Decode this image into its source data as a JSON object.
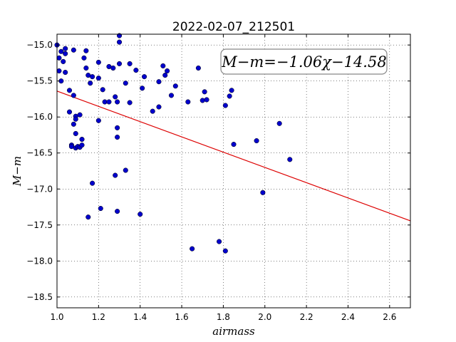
{
  "chart_data": {
    "type": "scatter",
    "title": "2022-02-07_212501",
    "xlabel": "airmass",
    "ylabel": "M−m",
    "xlim": [
      1.0,
      2.7
    ],
    "ylim": [
      -18.65,
      -14.85
    ],
    "y_inverted": false,
    "grid": true,
    "x_ticks": [
      1.0,
      1.2,
      1.4,
      1.6,
      1.8,
      2.0,
      2.2,
      2.4,
      2.6
    ],
    "x_tick_labels": [
      "1.0",
      "1.2",
      "1.4",
      "1.6",
      "1.8",
      "2.0",
      "2.2",
      "2.4",
      "2.6"
    ],
    "y_ticks": [
      -15.0,
      -15.5,
      -16.0,
      -16.5,
      -17.0,
      -17.5,
      -18.0,
      -18.5
    ],
    "y_tick_labels": [
      "−15.0",
      "−15.5",
      "−16.0",
      "−16.5",
      "−17.0",
      "−17.5",
      "−18.0",
      "−18.5"
    ],
    "annotation": "M−m=−1.06χ−14.58",
    "point_color": "#0000cc",
    "fit_color": "#dd0000",
    "fit_line": {
      "slope": -1.06,
      "intercept": -14.58,
      "x_range": [
        1.0,
        2.7
      ]
    },
    "points": [
      {
        "x": 1.0,
        "y": -15.0
      },
      {
        "x": 1.01,
        "y": -15.18
      },
      {
        "x": 1.01,
        "y": -15.36
      },
      {
        "x": 1.02,
        "y": -15.09
      },
      {
        "x": 1.02,
        "y": -15.5
      },
      {
        "x": 1.03,
        "y": -15.23
      },
      {
        "x": 1.04,
        "y": -15.05
      },
      {
        "x": 1.04,
        "y": -15.12
      },
      {
        "x": 1.04,
        "y": -15.38
      },
      {
        "x": 1.06,
        "y": -15.63
      },
      {
        "x": 1.06,
        "y": -15.93
      },
      {
        "x": 1.07,
        "y": -16.39
      },
      {
        "x": 1.07,
        "y": -16.41
      },
      {
        "x": 1.08,
        "y": -15.07
      },
      {
        "x": 1.08,
        "y": -15.7
      },
      {
        "x": 1.08,
        "y": -16.1
      },
      {
        "x": 1.09,
        "y": -15.99
      },
      {
        "x": 1.09,
        "y": -16.03
      },
      {
        "x": 1.09,
        "y": -16.23
      },
      {
        "x": 1.09,
        "y": -16.43
      },
      {
        "x": 1.1,
        "y": -16.41
      },
      {
        "x": 1.11,
        "y": -15.97
      },
      {
        "x": 1.11,
        "y": -16.42
      },
      {
        "x": 1.12,
        "y": -16.39
      },
      {
        "x": 1.12,
        "y": -16.31
      },
      {
        "x": 1.13,
        "y": -15.18
      },
      {
        "x": 1.14,
        "y": -15.08
      },
      {
        "x": 1.14,
        "y": -15.32
      },
      {
        "x": 1.15,
        "y": -15.42
      },
      {
        "x": 1.15,
        "y": -17.39
      },
      {
        "x": 1.16,
        "y": -15.53
      },
      {
        "x": 1.17,
        "y": -15.44
      },
      {
        "x": 1.17,
        "y": -16.92
      },
      {
        "x": 1.2,
        "y": -15.24
      },
      {
        "x": 1.2,
        "y": -15.46
      },
      {
        "x": 1.2,
        "y": -16.05
      },
      {
        "x": 1.21,
        "y": -17.27
      },
      {
        "x": 1.22,
        "y": -15.62
      },
      {
        "x": 1.23,
        "y": -15.79
      },
      {
        "x": 1.25,
        "y": -15.3
      },
      {
        "x": 1.25,
        "y": -15.79
      },
      {
        "x": 1.27,
        "y": -15.32
      },
      {
        "x": 1.28,
        "y": -15.72
      },
      {
        "x": 1.28,
        "y": -16.81
      },
      {
        "x": 1.29,
        "y": -15.79
      },
      {
        "x": 1.29,
        "y": -16.15
      },
      {
        "x": 1.29,
        "y": -16.28
      },
      {
        "x": 1.29,
        "y": -17.31
      },
      {
        "x": 1.3,
        "y": -14.87
      },
      {
        "x": 1.3,
        "y": -14.96
      },
      {
        "x": 1.3,
        "y": -15.26
      },
      {
        "x": 1.33,
        "y": -15.53
      },
      {
        "x": 1.33,
        "y": -16.74
      },
      {
        "x": 1.35,
        "y": -15.26
      },
      {
        "x": 1.35,
        "y": -15.8
      },
      {
        "x": 1.38,
        "y": -15.35
      },
      {
        "x": 1.4,
        "y": -17.35
      },
      {
        "x": 1.41,
        "y": -15.6
      },
      {
        "x": 1.42,
        "y": -15.44
      },
      {
        "x": 1.46,
        "y": -15.92
      },
      {
        "x": 1.49,
        "y": -15.51
      },
      {
        "x": 1.49,
        "y": -15.86
      },
      {
        "x": 1.51,
        "y": -15.29
      },
      {
        "x": 1.52,
        "y": -15.42
      },
      {
        "x": 1.53,
        "y": -15.36
      },
      {
        "x": 1.55,
        "y": -15.7
      },
      {
        "x": 1.57,
        "y": -15.57
      },
      {
        "x": 1.63,
        "y": -15.79
      },
      {
        "x": 1.65,
        "y": -17.83
      },
      {
        "x": 1.68,
        "y": -15.32
      },
      {
        "x": 1.7,
        "y": -15.77
      },
      {
        "x": 1.71,
        "y": -15.65
      },
      {
        "x": 1.72,
        "y": -15.76
      },
      {
        "x": 1.78,
        "y": -17.73
      },
      {
        "x": 1.81,
        "y": -15.84
      },
      {
        "x": 1.81,
        "y": -17.86
      },
      {
        "x": 1.83,
        "y": -15.71
      },
      {
        "x": 1.84,
        "y": -15.63
      },
      {
        "x": 1.85,
        "y": -16.38
      },
      {
        "x": 1.96,
        "y": -16.33
      },
      {
        "x": 1.99,
        "y": -17.05
      },
      {
        "x": 2.07,
        "y": -16.09
      },
      {
        "x": 2.12,
        "y": -16.59
      }
    ]
  }
}
